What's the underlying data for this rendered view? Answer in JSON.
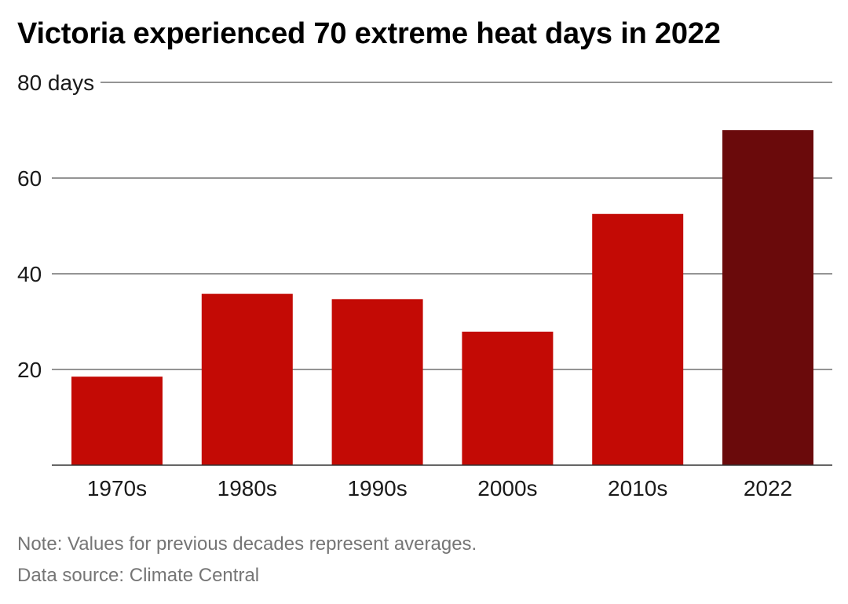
{
  "title": "Victoria experienced 70 extreme heat days in 2022",
  "note": "Note: Values for previous decades represent averages.",
  "source": "Data source: Climate Central",
  "colors": {
    "bar": "#c30a05",
    "bar_highlight": "#6a0a0b",
    "gridline": "#555555",
    "baseline": "#333333"
  },
  "chart_data": {
    "type": "bar",
    "title": "Victoria experienced 70 extreme heat days in 2022",
    "xlabel": "",
    "ylabel": "",
    "categories": [
      "1970s",
      "1980s",
      "1990s",
      "2000s",
      "2010s",
      "2022"
    ],
    "values": [
      18.5,
      35.8,
      34.7,
      27.9,
      52.5,
      70
    ],
    "highlight": [
      "2022"
    ],
    "ylim": [
      0,
      80
    ],
    "yticks": [
      20,
      40,
      60,
      80
    ],
    "ytick_labels": [
      "20",
      "40",
      "60",
      "80 days"
    ],
    "grid": true,
    "legend": "none"
  }
}
